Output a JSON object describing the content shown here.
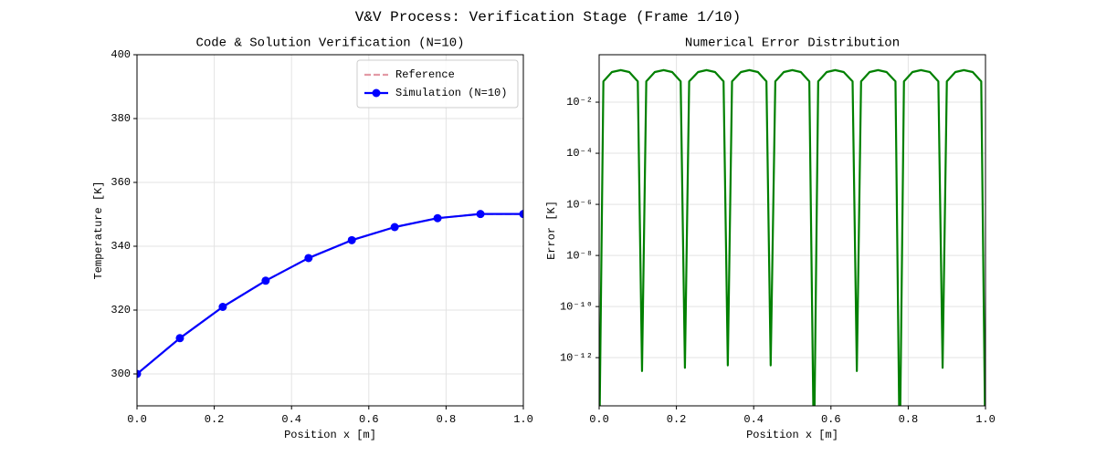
{
  "title": "V&V Process: Verification Stage (Frame 1/10)",
  "chart_data": [
    {
      "type": "line",
      "title": "Code & Solution Verification (N=10)",
      "xlabel": "Position x [m]",
      "ylabel": "Temperature [K]",
      "x": [
        0,
        0.111,
        0.222,
        0.333,
        0.444,
        0.556,
        0.667,
        0.778,
        0.889,
        1.0
      ],
      "series": [
        {
          "name": "Reference",
          "color": "#e39aa5",
          "style": "dashed",
          "values": [
            300,
            311.2,
            321,
            329.2,
            336.3,
            341.9,
            346,
            348.8,
            350.1,
            350.1
          ]
        },
        {
          "name": "Simulation (N=10)",
          "color": "#0000ff",
          "marker": true,
          "values": [
            300,
            311.2,
            321,
            329.2,
            336.3,
            341.9,
            346,
            348.8,
            350.1,
            350.1
          ]
        }
      ],
      "xlim": [
        0,
        1
      ],
      "xticks": [
        {
          "value": 0,
          "label": "0.0"
        },
        0.2,
        0.4,
        0.6,
        0.8,
        {
          "value": 1,
          "label": "1.0"
        }
      ],
      "ylim": [
        290,
        400
      ],
      "yticks": [
        300,
        320,
        340,
        360,
        380,
        400
      ],
      "grid": true,
      "legend": "upper right"
    },
    {
      "type": "line",
      "title": "Numerical Error Distribution",
      "xlabel": "Position x [m]",
      "ylabel": "Error [K]",
      "yscale": "log",
      "x": [
        0,
        0.011,
        0.033,
        0.056,
        0.078,
        0.1,
        0.111,
        0.122,
        0.144,
        0.167,
        0.189,
        0.211,
        0.222,
        0.233,
        0.256,
        0.278,
        0.3,
        0.322,
        0.333,
        0.344,
        0.367,
        0.389,
        0.411,
        0.433,
        0.444,
        0.456,
        0.478,
        0.5,
        0.522,
        0.544,
        0.556,
        0.567,
        0.589,
        0.611,
        0.633,
        0.656,
        0.667,
        0.678,
        0.7,
        0.722,
        0.744,
        0.767,
        0.778,
        0.789,
        0.811,
        0.833,
        0.856,
        0.878,
        0.889,
        0.9,
        0.922,
        0.944,
        0.967,
        0.989,
        1.0
      ],
      "series": [
        {
          "color": "#008000",
          "values": [
            1e-16,
            0.065,
            0.151,
            0.18,
            0.151,
            0.065,
            3e-13,
            0.065,
            0.151,
            0.18,
            0.151,
            0.065,
            4e-13,
            0.065,
            0.151,
            0.18,
            0.151,
            0.065,
            5e-13,
            0.065,
            0.151,
            0.18,
            0.151,
            0.065,
            5e-13,
            0.065,
            0.151,
            0.18,
            0.151,
            0.065,
            1e-16,
            0.065,
            0.151,
            0.18,
            0.151,
            0.065,
            3e-13,
            0.065,
            0.151,
            0.18,
            0.151,
            0.065,
            1e-16,
            0.065,
            0.151,
            0.18,
            0.151,
            0.065,
            4e-13,
            0.065,
            0.151,
            0.18,
            0.151,
            0.065,
            1e-16
          ]
        }
      ],
      "xlim": [
        0,
        1
      ],
      "xticks": [
        {
          "value": 0,
          "label": "0.0"
        },
        0.2,
        0.4,
        0.6,
        0.8,
        {
          "value": 1,
          "label": "1.0"
        }
      ],
      "ylim": [
        1.3e-14,
        0.72
      ],
      "yticks": [
        {
          "value": 0.01,
          "label": "10⁻²"
        },
        {
          "value": 0.0001,
          "label": "10⁻⁴"
        },
        {
          "value": 1e-06,
          "label": "10⁻⁶"
        },
        {
          "value": 1e-08,
          "label": "10⁻⁸"
        },
        {
          "value": 1e-10,
          "label": "10⁻¹⁰"
        },
        {
          "value": 1e-12,
          "label": "10⁻¹²"
        }
      ],
      "grid": true
    }
  ]
}
